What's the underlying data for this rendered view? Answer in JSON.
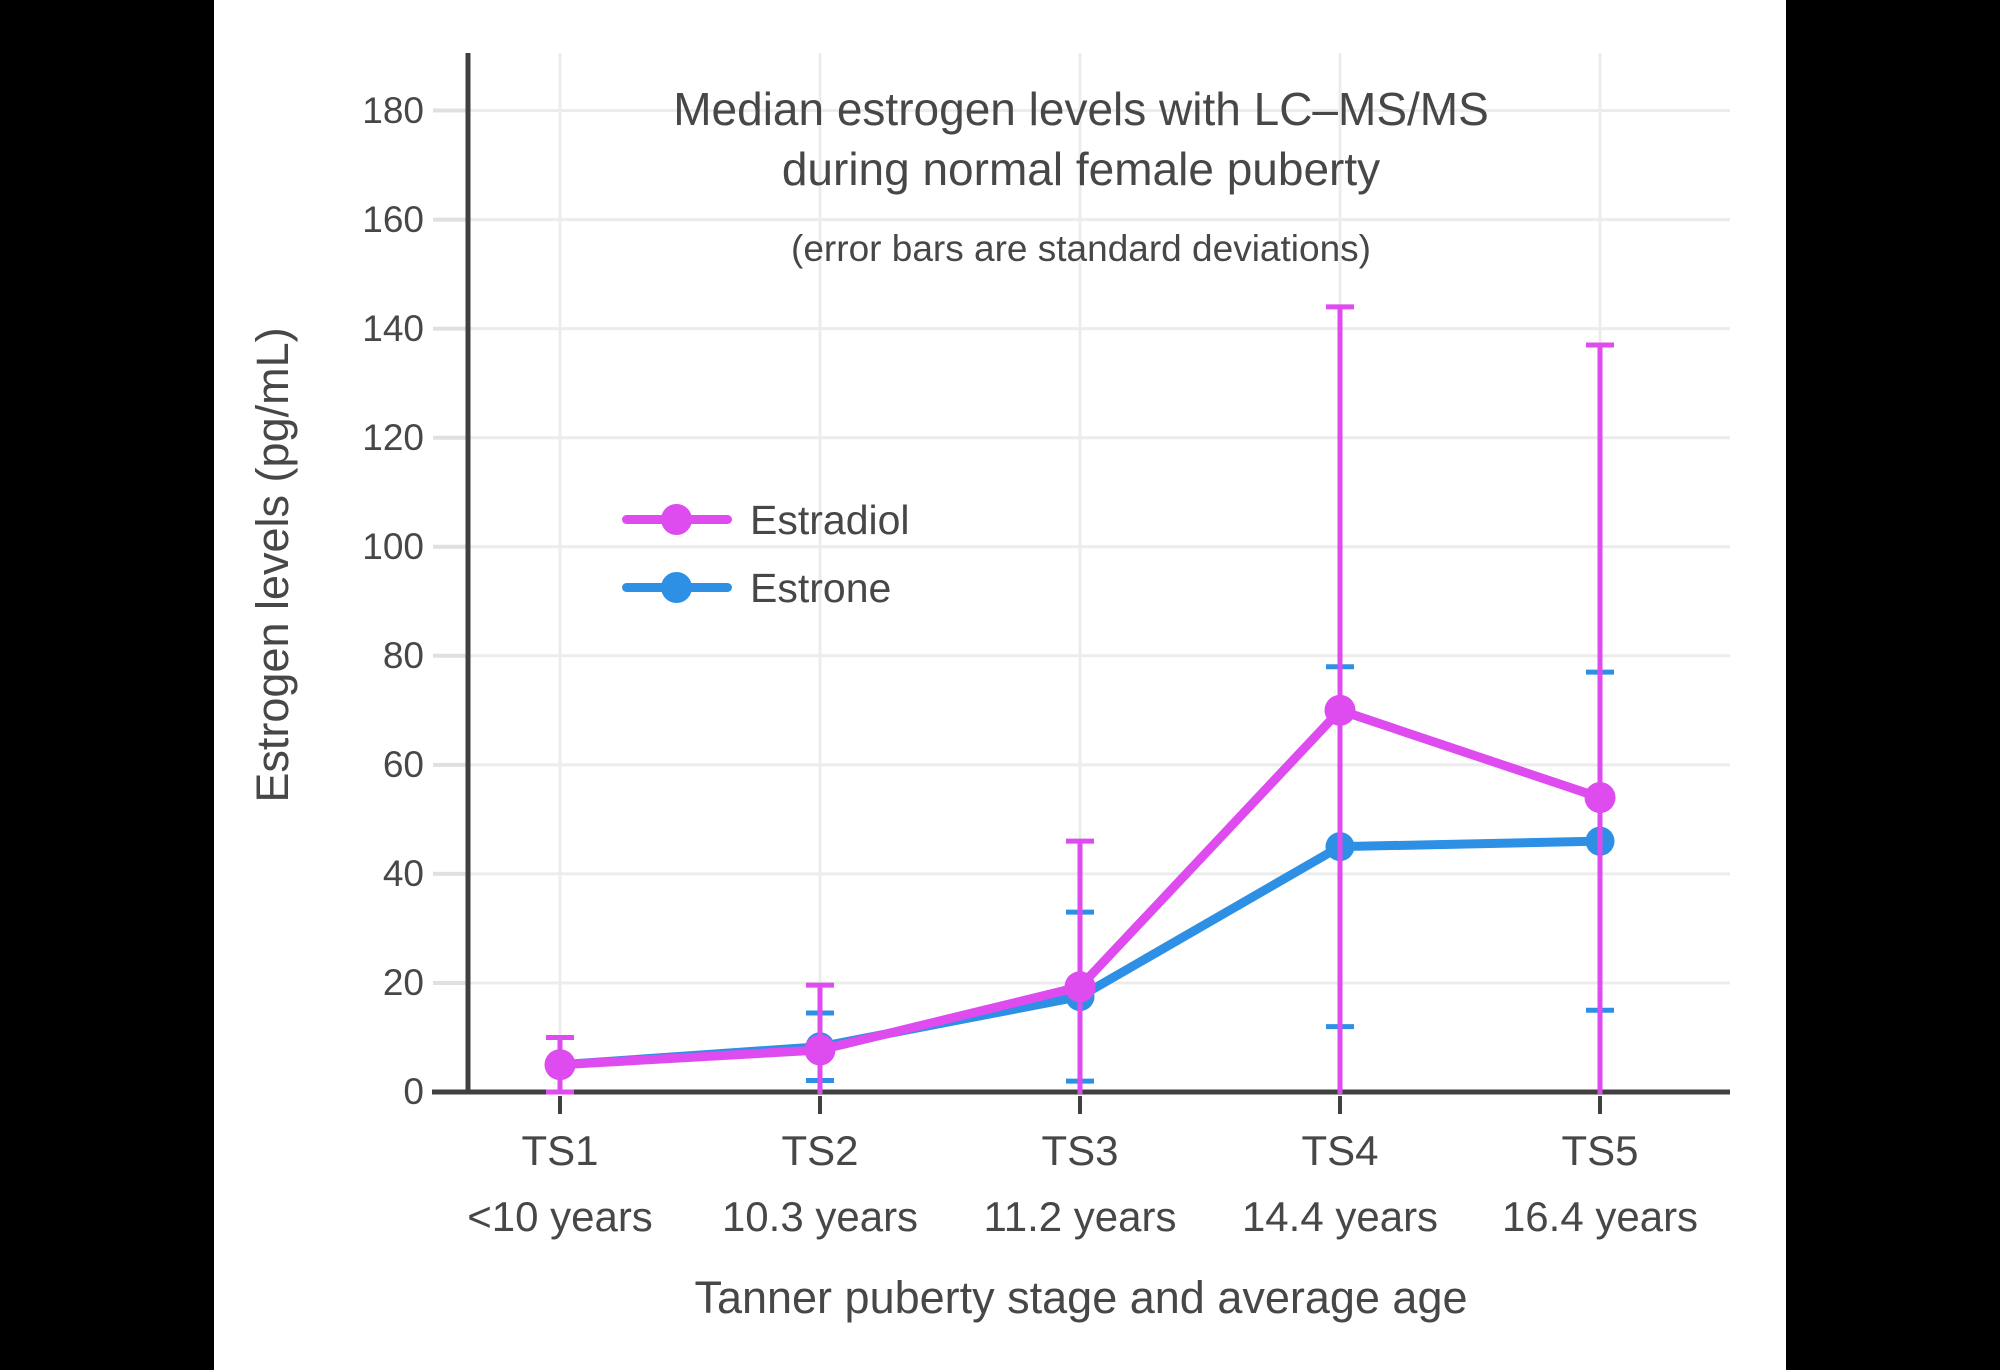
{
  "figure": {
    "title_line1": "Median estrogen levels with LC–MS/MS",
    "title_line2": "during normal female puberty",
    "subtitle": "(error bars are standard deviations)"
  },
  "chart_data": {
    "type": "line",
    "title": "Median estrogen levels with LC–MS/MS during normal female puberty",
    "subtitle": "(error bars are standard deviations)",
    "xlabel": "Tanner puberty stage and average age",
    "ylabel": "Estrogen levels (pg/mL)",
    "categories": [
      "TS1",
      "TS2",
      "TS3",
      "TS4",
      "TS5"
    ],
    "category_sublabels": [
      "<10 years",
      "10.3 years",
      "11.2 years",
      "14.4 years",
      "16.4 years"
    ],
    "yticks": [
      0,
      20,
      40,
      60,
      80,
      100,
      120,
      140,
      160,
      180
    ],
    "ylim": [
      0,
      190
    ],
    "grid": true,
    "legend_position": "inside-upper-left",
    "error_bar_meaning": "standard deviations",
    "series": [
      {
        "name": "Estradiol",
        "color": "#DE4BEF",
        "values": [
          5,
          7.7,
          19.3,
          70,
          54
        ],
        "sd": [
          5,
          11.9,
          26.7,
          74,
          83
        ],
        "draw_order": 2
      },
      {
        "name": "Estrone",
        "color": "#2E90E5",
        "values": [
          5,
          8.3,
          17.5,
          45,
          46
        ],
        "sd": [
          null,
          6.2,
          15.5,
          33,
          31
        ],
        "draw_order": 1
      }
    ]
  },
  "colors": {
    "background": "#FFFFFF",
    "frame": "#000000",
    "grid": "#ECECEC",
    "tick_dash": "#E0E0E0",
    "axis": "#404040",
    "text": "#474747"
  }
}
